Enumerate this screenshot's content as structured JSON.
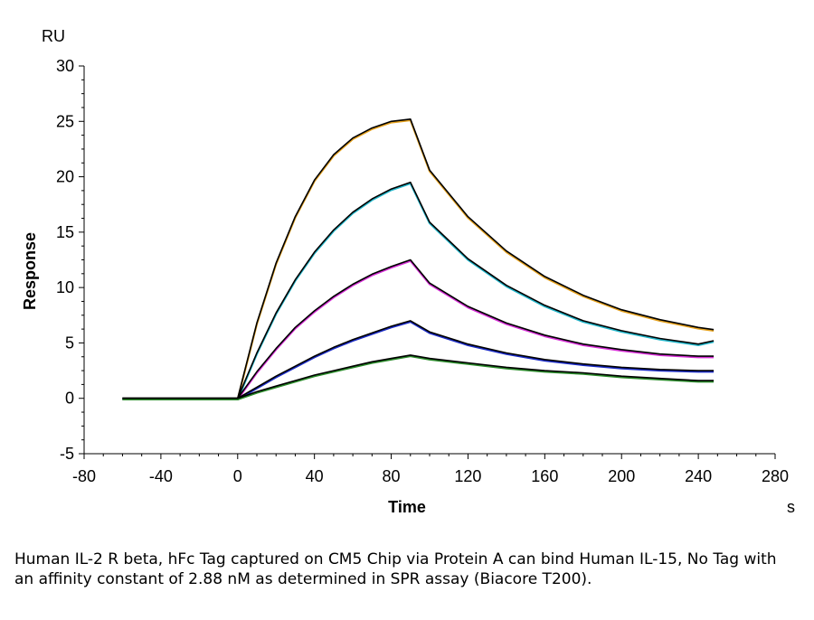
{
  "chart_data": {
    "type": "line",
    "y_unit": "RU",
    "x_unit": "s",
    "xlabel": "Time",
    "ylabel": "Response",
    "xlim": [
      -80,
      280
    ],
    "ylim": [
      -5,
      30
    ],
    "x_ticks": [
      -80,
      -40,
      0,
      40,
      80,
      120,
      160,
      200,
      240,
      280
    ],
    "y_ticks": [
      -5,
      0,
      5,
      10,
      15,
      20,
      25,
      30
    ],
    "grid": false,
    "legend": "none",
    "x": [
      -60,
      -40,
      -20,
      0,
      10,
      20,
      30,
      40,
      50,
      60,
      70,
      80,
      90,
      100,
      120,
      140,
      160,
      180,
      200,
      220,
      240,
      248
    ],
    "series": [
      {
        "color": "#e6a21e",
        "fit_color": "#000000",
        "values": [
          0,
          0,
          0,
          0,
          6.8,
          12.2,
          16.4,
          19.7,
          22.0,
          23.5,
          24.4,
          25.0,
          25.2,
          20.6,
          16.4,
          13.3,
          11.0,
          9.3,
          8.0,
          7.1,
          6.4,
          6.2
        ]
      },
      {
        "color": "#21b5c9",
        "fit_color": "#000000",
        "values": [
          0,
          0,
          0,
          0,
          4.1,
          7.7,
          10.7,
          13.2,
          15.2,
          16.8,
          18.0,
          18.9,
          19.5,
          15.9,
          12.6,
          10.2,
          8.4,
          7.0,
          6.1,
          5.4,
          4.9,
          5.2
        ]
      },
      {
        "color": "#d62ed6",
        "fit_color": "#000000",
        "values": [
          0,
          0,
          0,
          0,
          2.4,
          4.5,
          6.4,
          7.9,
          9.2,
          10.3,
          11.2,
          11.9,
          12.5,
          10.4,
          8.3,
          6.8,
          5.7,
          4.9,
          4.4,
          4.0,
          3.8,
          3.8
        ]
      },
      {
        "color": "#1b2bc4",
        "fit_color": "#000000",
        "values": [
          0,
          0,
          0,
          0,
          1.0,
          2.0,
          2.9,
          3.8,
          4.6,
          5.3,
          5.9,
          6.5,
          7.0,
          6.0,
          4.9,
          4.1,
          3.5,
          3.1,
          2.8,
          2.6,
          2.5,
          2.5
        ]
      },
      {
        "color": "#2a8a2a",
        "fit_color": "#000000",
        "values": [
          0,
          0,
          0,
          0,
          0.6,
          1.1,
          1.6,
          2.1,
          2.5,
          2.9,
          3.3,
          3.6,
          3.9,
          3.6,
          3.2,
          2.8,
          2.5,
          2.3,
          2.0,
          1.8,
          1.6,
          1.6
        ]
      }
    ]
  },
  "caption": "Human IL-2 R beta, hFc Tag captured on CM5 Chip via Protein A can bind Human IL-15, No Tag with an affinity constant of 2.88 nM as determined in SPR assay (Biacore T200)."
}
